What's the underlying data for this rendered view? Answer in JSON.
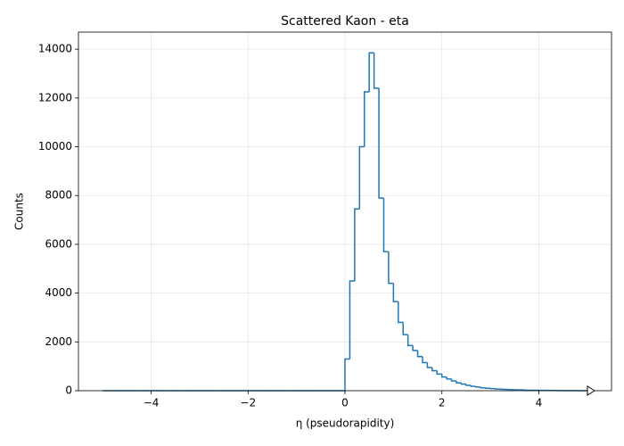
{
  "chart_data": {
    "type": "histogram",
    "title": "Scattered Kaon - eta",
    "x_label": "η (pseudorapidity)",
    "y_label": "Counts",
    "color": "#1f77b4",
    "grid": true,
    "bins": [
      -5.0,
      -4.9,
      -4.8,
      -4.7,
      -4.6,
      -4.5,
      -4.4,
      -4.3,
      -4.2,
      -4.1,
      -4.0,
      -3.9,
      -3.8,
      -3.7,
      -3.6,
      -3.5,
      -3.4,
      -3.3,
      -3.2,
      -3.1,
      -3.0,
      -2.9,
      -2.8,
      -2.7,
      -2.6,
      -2.5,
      -2.4,
      -2.3,
      -2.2,
      -2.1,
      -2.0,
      -1.9,
      -1.8,
      -1.7,
      -1.6,
      -1.5,
      -1.4,
      -1.3,
      -1.2,
      -1.1,
      -1.0,
      -0.9,
      -0.8,
      -0.7,
      -0.6,
      -0.5,
      -0.4,
      -0.3,
      -0.2,
      -0.1,
      0.0,
      0.1,
      0.2,
      0.3,
      0.4,
      0.5,
      0.6,
      0.7,
      0.8,
      0.9,
      1.0,
      1.1,
      1.2,
      1.3,
      1.4,
      1.5,
      1.6,
      1.7,
      1.8,
      1.9,
      2.0,
      2.1,
      2.2,
      2.3,
      2.4,
      2.5,
      2.6,
      2.7,
      2.8,
      2.9,
      3.0,
      3.1,
      3.2,
      3.3,
      3.4,
      3.5,
      3.6,
      3.7,
      3.8,
      3.9,
      4.0,
      4.1,
      4.2,
      4.3,
      4.4,
      4.5,
      4.6,
      4.7,
      4.8,
      4.9,
      5.0
    ],
    "values": [
      0,
      0,
      0,
      0,
      0,
      0,
      0,
      0,
      0,
      0,
      0,
      0,
      0,
      0,
      0,
      0,
      0,
      0,
      0,
      0,
      0,
      0,
      0,
      0,
      0,
      0,
      0,
      0,
      0,
      0,
      0,
      0,
      0,
      0,
      0,
      0,
      0,
      0,
      0,
      0,
      0,
      0,
      0,
      0,
      0,
      0,
      0,
      0,
      0,
      0,
      1300,
      4500,
      7450,
      10000,
      12250,
      13850,
      12400,
      7900,
      5700,
      4400,
      3650,
      2800,
      2300,
      1850,
      1650,
      1400,
      1150,
      950,
      820,
      680,
      560,
      480,
      400,
      320,
      270,
      220,
      180,
      150,
      120,
      100,
      85,
      70,
      60,
      50,
      40,
      35,
      30,
      25,
      20,
      18,
      15,
      12,
      10,
      8,
      6,
      5,
      4,
      3,
      2,
      2
    ],
    "xlim": [
      -5.5,
      5.5
    ],
    "ylim": [
      0,
      14700
    ],
    "xticks": [
      {
        "value": -4,
        "label": "−4"
      },
      {
        "value": -2,
        "label": "−2"
      },
      0,
      2,
      4
    ],
    "yticks": [
      0,
      2000,
      4000,
      6000,
      8000,
      10000,
      12000,
      14000
    ]
  }
}
